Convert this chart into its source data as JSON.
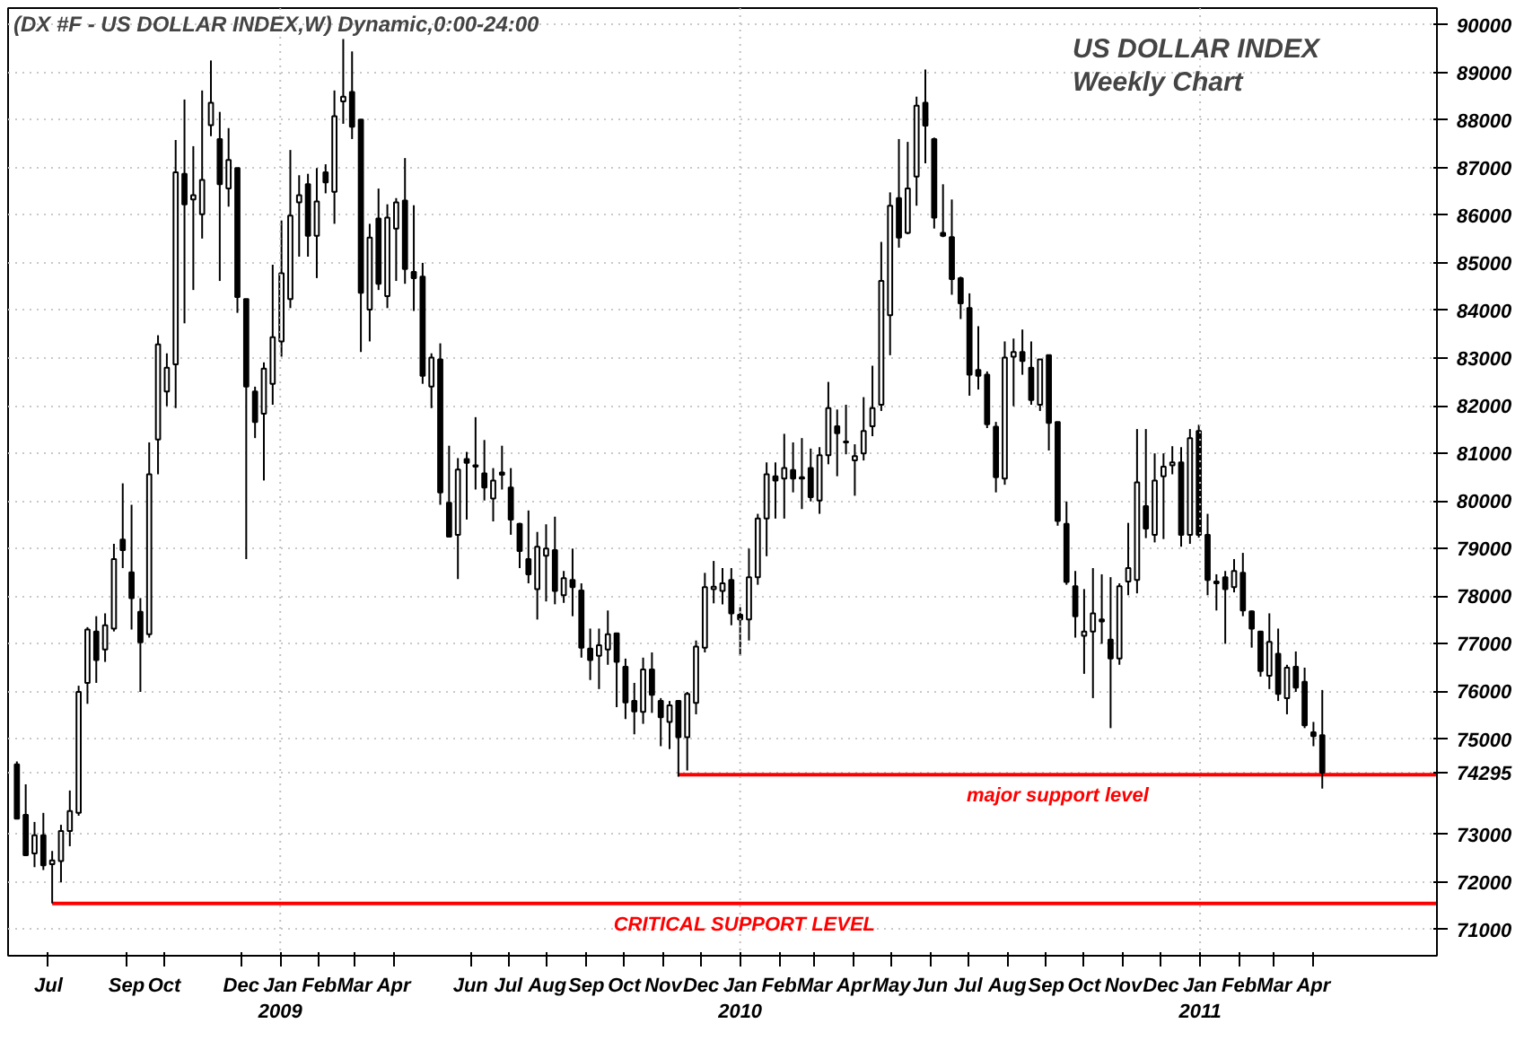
{
  "chart_data": {
    "type": "candlestick",
    "title": "US DOLLAR INDEX",
    "subtitle": "Weekly Chart",
    "annotations": [
      "(DX #F - US DOLLAR INDEX,W) Dynamic,0:00-24:00",
      "major support level",
      "CRITICAL SUPPORT LEVEL"
    ],
    "x": [
      "2008-06-06",
      "2008-06-13",
      "2008-06-20",
      "2008-06-27",
      "2008-07-04",
      "2008-07-11",
      "2008-07-18",
      "2008-07-25",
      "2008-08-01",
      "2008-08-08",
      "2008-08-15",
      "2008-08-22",
      "2008-08-29",
      "2008-09-05",
      "2008-09-12",
      "2008-09-19",
      "2008-09-26",
      "2008-10-03",
      "2008-10-10",
      "2008-10-17",
      "2008-10-24",
      "2008-10-31",
      "2008-11-07",
      "2008-11-14",
      "2008-11-21",
      "2008-11-28",
      "2008-12-05",
      "2008-12-12",
      "2008-12-19",
      "2008-12-26",
      "2009-01-02",
      "2009-01-09",
      "2009-01-16",
      "2009-01-23",
      "2009-01-30",
      "2009-02-06",
      "2009-02-13",
      "2009-02-20",
      "2009-02-27",
      "2009-03-06",
      "2009-03-13",
      "2009-03-20",
      "2009-03-27",
      "2009-04-03",
      "2009-04-10",
      "2009-04-17",
      "2009-04-24",
      "2009-05-01",
      "2009-05-08",
      "2009-05-15",
      "2009-05-22",
      "2009-05-29",
      "2009-06-05",
      "2009-06-12",
      "2009-06-19",
      "2009-06-26",
      "2009-07-03",
      "2009-07-10",
      "2009-07-17",
      "2009-07-24",
      "2009-07-31",
      "2009-08-07",
      "2009-08-14",
      "2009-08-21",
      "2009-08-28",
      "2009-09-04",
      "2009-09-11",
      "2009-09-18",
      "2009-09-25",
      "2009-10-02",
      "2009-10-09",
      "2009-10-16",
      "2009-10-23",
      "2009-10-30",
      "2009-11-06",
      "2009-11-13",
      "2009-11-20",
      "2009-11-27",
      "2009-12-04",
      "2009-12-11",
      "2009-12-18",
      "2009-12-25",
      "2010-01-01",
      "2010-01-08",
      "2010-01-15",
      "2010-01-22",
      "2010-01-29",
      "2010-02-05",
      "2010-02-12",
      "2010-02-19",
      "2010-02-26",
      "2010-03-05",
      "2010-03-12",
      "2010-03-19",
      "2010-03-26",
      "2010-04-02",
      "2010-04-09",
      "2010-04-16",
      "2010-04-23",
      "2010-04-30",
      "2010-05-07",
      "2010-05-14",
      "2010-05-21",
      "2010-05-28",
      "2010-06-04",
      "2010-06-11",
      "2010-06-18",
      "2010-06-25",
      "2010-07-02",
      "2010-07-09",
      "2010-07-16",
      "2010-07-23",
      "2010-07-30",
      "2010-08-06",
      "2010-08-13",
      "2010-08-20",
      "2010-08-27",
      "2010-09-03",
      "2010-09-10",
      "2010-09-17",
      "2010-09-24",
      "2010-10-01",
      "2010-10-08",
      "2010-10-15",
      "2010-10-22",
      "2010-10-29",
      "2010-11-05",
      "2010-11-12",
      "2010-11-19",
      "2010-11-26",
      "2010-12-03",
      "2010-12-10",
      "2010-12-17",
      "2010-12-24",
      "2010-12-31",
      "2011-01-07",
      "2011-01-14",
      "2011-01-21",
      "2011-01-28",
      "2011-02-04",
      "2011-02-11",
      "2011-02-18",
      "2011-02-25",
      "2011-03-04",
      "2011-03-11",
      "2011-03-18",
      "2011-03-25",
      "2011-04-01",
      "2011-04-08"
    ],
    "ohlc": [
      [
        74470,
        74530,
        73330,
        73330
      ],
      [
        73410,
        74050,
        72560,
        72560
      ],
      [
        72600,
        73260,
        72310,
        72980
      ],
      [
        72980,
        73450,
        72250,
        72350
      ],
      [
        72370,
        72650,
        71550,
        72450
      ],
      [
        72440,
        73200,
        71990,
        73070
      ],
      [
        73070,
        73920,
        72750,
        73490
      ],
      [
        73450,
        76120,
        73390,
        75990
      ],
      [
        76180,
        77350,
        75740,
        77300
      ],
      [
        77260,
        77580,
        76180,
        76660
      ],
      [
        76880,
        77640,
        76620,
        77390
      ],
      [
        77320,
        79100,
        77260,
        78780
      ],
      [
        79190,
        80370,
        78590,
        78970
      ],
      [
        78500,
        79920,
        77300,
        77960
      ],
      [
        77670,
        77960,
        75990,
        77030
      ],
      [
        77200,
        81230,
        77130,
        80560
      ],
      [
        81290,
        83480,
        80560,
        83290
      ],
      [
        82300,
        83100,
        81990,
        82800
      ],
      [
        82870,
        87580,
        81950,
        86900
      ],
      [
        86870,
        88430,
        83730,
        86230
      ],
      [
        86330,
        87450,
        84430,
        86420
      ],
      [
        86020,
        88620,
        85510,
        86740
      ],
      [
        87890,
        89250,
        87660,
        88360
      ],
      [
        87600,
        88170,
        84620,
        86650
      ],
      [
        86560,
        87830,
        86180,
        87160
      ],
      [
        86990,
        86990,
        83950,
        84280
      ],
      [
        84240,
        84240,
        78780,
        82400
      ],
      [
        82300,
        82400,
        81320,
        81660
      ],
      [
        81830,
        82910,
        80430,
        82780
      ],
      [
        82460,
        84960,
        82020,
        83440
      ],
      [
        83350,
        85890,
        83030,
        84780
      ],
      [
        84240,
        87370,
        84050,
        85990
      ],
      [
        86270,
        86840,
        85130,
        86420
      ],
      [
        86650,
        86870,
        85130,
        85570
      ],
      [
        85570,
        86990,
        84680,
        86290
      ],
      [
        86900,
        87070,
        86460,
        86690
      ],
      [
        86490,
        88620,
        85820,
        88080
      ],
      [
        88390,
        89700,
        87920,
        88490
      ],
      [
        88590,
        89440,
        87600,
        87860
      ],
      [
        88010,
        88010,
        83130,
        84370
      ],
      [
        84020,
        85820,
        83350,
        85530
      ],
      [
        85930,
        86560,
        84430,
        84560
      ],
      [
        84300,
        86230,
        84050,
        85950
      ],
      [
        85720,
        86360,
        84620,
        86270
      ],
      [
        86310,
        87200,
        84560,
        84870
      ],
      [
        84810,
        86210,
        83990,
        84680
      ],
      [
        84710,
        85000,
        82460,
        82630
      ],
      [
        82400,
        83100,
        81950,
        83010
      ],
      [
        82970,
        83310,
        79920,
        80180
      ],
      [
        79960,
        81160,
        79250,
        79250
      ],
      [
        79290,
        80900,
        78360,
        80660
      ],
      [
        80880,
        81030,
        79610,
        80800
      ],
      [
        80750,
        81760,
        80240,
        80720
      ],
      [
        80580,
        81280,
        80010,
        80280
      ],
      [
        80050,
        80690,
        79570,
        80430
      ],
      [
        80600,
        81160,
        80240,
        80550
      ],
      [
        80280,
        80690,
        79290,
        79610
      ],
      [
        79520,
        79540,
        78590,
        78950
      ],
      [
        78780,
        79800,
        78270,
        78460
      ],
      [
        78150,
        79350,
        77510,
        79040
      ],
      [
        78850,
        79510,
        77890,
        79000
      ],
      [
        78970,
        79670,
        77830,
        78110
      ],
      [
        78020,
        78530,
        77860,
        78380
      ],
      [
        78340,
        79000,
        77580,
        78190
      ],
      [
        78120,
        78270,
        76710,
        76920
      ],
      [
        76900,
        77320,
        76240,
        76660
      ],
      [
        76750,
        77320,
        76050,
        76970
      ],
      [
        76880,
        77700,
        76560,
        77200
      ],
      [
        77220,
        77220,
        75670,
        76620
      ],
      [
        76520,
        76690,
        75420,
        75770
      ],
      [
        75800,
        76180,
        75100,
        75580
      ],
      [
        75570,
        76710,
        75320,
        76460
      ],
      [
        76460,
        76820,
        75550,
        75930
      ],
      [
        75800,
        75860,
        74850,
        75460
      ],
      [
        75360,
        75800,
        74790,
        75710
      ],
      [
        75800,
        75800,
        74210,
        75040
      ],
      [
        75040,
        75990,
        74340,
        75950
      ],
      [
        75760,
        77070,
        75520,
        76940
      ],
      [
        76920,
        78490,
        76820,
        78190
      ],
      [
        78150,
        78740,
        77850,
        78200
      ],
      [
        78110,
        78590,
        77830,
        78270
      ],
      [
        78340,
        78590,
        77390,
        77640
      ],
      [
        77610,
        77770,
        76750,
        77510
      ],
      [
        77510,
        79000,
        77070,
        78400
      ],
      [
        78400,
        79730,
        78240,
        79630
      ],
      [
        79630,
        80810,
        78840,
        80560
      ],
      [
        80520,
        80810,
        79630,
        80430
      ],
      [
        80470,
        81410,
        79630,
        80690
      ],
      [
        80650,
        81230,
        80180,
        80470
      ],
      [
        80500,
        81320,
        79830,
        80470
      ],
      [
        80690,
        81100,
        79990,
        80080
      ],
      [
        80010,
        81130,
        79730,
        80960
      ],
      [
        80960,
        82500,
        80770,
        81950
      ],
      [
        81570,
        81920,
        80520,
        81420
      ],
      [
        81250,
        82020,
        80980,
        81230
      ],
      [
        80850,
        81190,
        80110,
        80940
      ],
      [
        81000,
        82180,
        80850,
        81470
      ],
      [
        81570,
        82840,
        81360,
        81950
      ],
      [
        82020,
        85440,
        81890,
        84620
      ],
      [
        83900,
        86480,
        83060,
        86200
      ],
      [
        86360,
        87600,
        85320,
        85530
      ],
      [
        85630,
        87540,
        85600,
        86560
      ],
      [
        86810,
        88490,
        86200,
        88300
      ],
      [
        88360,
        89060,
        87090,
        87880
      ],
      [
        87600,
        87630,
        85720,
        85950
      ],
      [
        85630,
        86650,
        85540,
        85570
      ],
      [
        85540,
        86330,
        84330,
        84660
      ],
      [
        84680,
        84710,
        83820,
        84150
      ],
      [
        84050,
        84360,
        82210,
        82650
      ],
      [
        82750,
        83670,
        82340,
        82630
      ],
      [
        82650,
        82720,
        81530,
        81610
      ],
      [
        81560,
        81660,
        80180,
        80500
      ],
      [
        80470,
        83350,
        80340,
        83010
      ],
      [
        83030,
        83410,
        81990,
        83130
      ],
      [
        83130,
        83600,
        82650,
        82940
      ],
      [
        82800,
        83350,
        82020,
        82120
      ],
      [
        82020,
        82970,
        81890,
        82970
      ],
      [
        83060,
        83060,
        81060,
        81640
      ],
      [
        81660,
        81660,
        79480,
        79580
      ],
      [
        79520,
        79990,
        78240,
        78300
      ],
      [
        78210,
        78530,
        77130,
        77580
      ],
      [
        77170,
        78150,
        76370,
        77260
      ],
      [
        77260,
        78590,
        75860,
        77640
      ],
      [
        77510,
        78460,
        77000,
        77470
      ],
      [
        77090,
        78400,
        75230,
        76690
      ],
      [
        76690,
        78270,
        76560,
        78210
      ],
      [
        78310,
        79540,
        78020,
        78590
      ],
      [
        78340,
        81510,
        78060,
        80390
      ],
      [
        79890,
        81510,
        79220,
        79420
      ],
      [
        79290,
        81000,
        79130,
        80430
      ],
      [
        80520,
        81000,
        79200,
        80720
      ],
      [
        80750,
        81150,
        80560,
        80810
      ],
      [
        80810,
        81130,
        79040,
        79290
      ],
      [
        79290,
        81510,
        79100,
        81320
      ],
      [
        81470,
        81600,
        79230,
        79290
      ],
      [
        79290,
        79730,
        78020,
        78340
      ],
      [
        78310,
        78460,
        77700,
        78270
      ],
      [
        78400,
        78530,
        77000,
        78150
      ],
      [
        78190,
        78780,
        78080,
        78530
      ],
      [
        78490,
        78910,
        77580,
        77700
      ],
      [
        77680,
        77700,
        76920,
        77320
      ],
      [
        77260,
        77260,
        76310,
        76430
      ],
      [
        76330,
        77640,
        76050,
        77040
      ],
      [
        76790,
        77320,
        75800,
        75950
      ],
      [
        75860,
        76560,
        75520,
        76500
      ],
      [
        76520,
        76840,
        75990,
        76080
      ],
      [
        76200,
        76500,
        75230,
        75290
      ],
      [
        75140,
        75360,
        74850,
        75060
      ],
      [
        75080,
        76030,
        73960,
        74295
      ]
    ],
    "series": [
      {
        "type": "line",
        "color": "#ff0000",
        "x": [
          "2009-11-13",
          "2011-07-08"
        ],
        "values": [
          74250,
          74250
        ]
      },
      {
        "type": "line",
        "color": "#ff0000",
        "x": [
          "2008-07-04",
          "2011-07-08"
        ],
        "values": [
          71550,
          71550
        ]
      }
    ],
    "ref_lines": [
      {
        "axis": "x",
        "value": "2009-01-01",
        "color": "#c0c0c0",
        "line_style": "dotted"
      },
      {
        "axis": "x",
        "value": "2010-01-01",
        "color": "#c0c0c0",
        "line_style": "dotted"
      },
      {
        "axis": "x",
        "value": "2011-01-01",
        "color": "#c0c0c0",
        "line_style": "dotted"
      }
    ],
    "xlim": [
      "2008-05-30",
      "2011-07-08"
    ],
    "xticks": [
      {
        "value": "2008-07-01",
        "label": "Jul"
      },
      {
        "value": "2008-09-01",
        "label": "Sep"
      },
      {
        "value": "2008-10-01",
        "label": "Oct"
      },
      {
        "value": "2008-12-01",
        "label": "Dec"
      },
      {
        "value": "2009-01-01",
        "label": "Jan\n2009"
      },
      {
        "value": "2009-02-01",
        "label": "Feb"
      },
      {
        "value": "2009-03-01",
        "label": "Mar"
      },
      {
        "value": "2009-04-01",
        "label": "Apr"
      },
      {
        "value": "2009-06-01",
        "label": "Jun"
      },
      {
        "value": "2009-07-01",
        "label": "Jul"
      },
      {
        "value": "2009-08-01",
        "label": "Aug"
      },
      {
        "value": "2009-09-01",
        "label": "Sep"
      },
      {
        "value": "2009-10-01",
        "label": "Oct"
      },
      {
        "value": "2009-11-01",
        "label": "Nov"
      },
      {
        "value": "2009-12-01",
        "label": "Dec"
      },
      {
        "value": "2010-01-01",
        "label": "Jan\n2010"
      },
      {
        "value": "2010-02-01",
        "label": "Feb"
      },
      {
        "value": "2010-03-01",
        "label": "Mar"
      },
      {
        "value": "2010-04-01",
        "label": "Apr"
      },
      {
        "value": "2010-05-01",
        "label": "May"
      },
      {
        "value": "2010-06-01",
        "label": "Jun"
      },
      {
        "value": "2010-07-01",
        "label": "Jul"
      },
      {
        "value": "2010-08-01",
        "label": "Aug"
      },
      {
        "value": "2010-09-01",
        "label": "Sep"
      },
      {
        "value": "2010-10-01",
        "label": "Oct"
      },
      {
        "value": "2010-11-01",
        "label": "Nov"
      },
      {
        "value": "2010-12-01",
        "label": "Dec"
      },
      {
        "value": "2011-01-01",
        "label": "Jan\n2011"
      },
      {
        "value": "2011-02-01",
        "label": "Feb"
      },
      {
        "value": "2011-03-01",
        "label": "Mar"
      },
      {
        "value": "2011-04-01",
        "label": "Apr"
      }
    ],
    "ylim": [
      70450,
      90350
    ],
    "yticks": [
      71000,
      72000,
      73000,
      74295,
      75000,
      76000,
      77000,
      78000,
      79000,
      80000,
      81000,
      82000,
      83000,
      84000,
      85000,
      86000,
      87000,
      88000,
      89000,
      90000
    ],
    "grid": "y"
  }
}
